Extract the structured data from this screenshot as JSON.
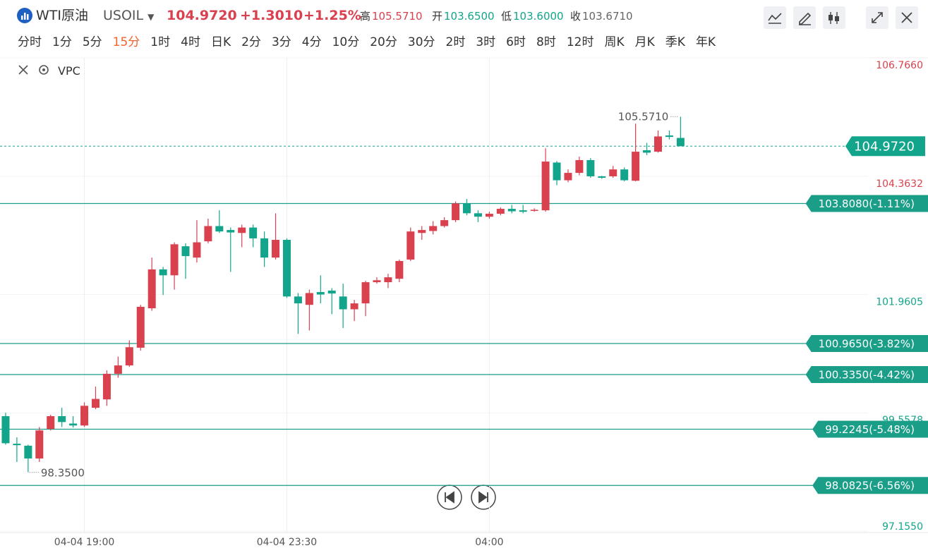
{
  "header": {
    "symbol_name": "WTI原油",
    "symbol": "USOIL",
    "price": "104.9720",
    "change": "+1.3010",
    "change_pct": "+1.25%",
    "stats": [
      {
        "label": "高",
        "value": "105.5710",
        "color": "#d9414f"
      },
      {
        "label": "开",
        "value": "103.6500",
        "color": "#13a58c"
      },
      {
        "label": "低",
        "value": "103.6000",
        "color": "#13a58c"
      },
      {
        "label": "收",
        "value": "103.6710",
        "color": "#666666"
      }
    ]
  },
  "timeframes": [
    {
      "label": "分时"
    },
    {
      "label": "1分"
    },
    {
      "label": "5分"
    },
    {
      "label": "15分",
      "active": true
    },
    {
      "label": "1时"
    },
    {
      "label": "4时"
    },
    {
      "label": "日K"
    },
    {
      "label": "2分"
    },
    {
      "label": "3分"
    },
    {
      "label": "4分"
    },
    {
      "label": "10分"
    },
    {
      "label": "20分"
    },
    {
      "label": "30分"
    },
    {
      "label": "2时"
    },
    {
      "label": "3时"
    },
    {
      "label": "6时"
    },
    {
      "label": "8时"
    },
    {
      "label": "12时"
    },
    {
      "label": "周K"
    },
    {
      "label": "月K"
    },
    {
      "label": "季K"
    },
    {
      "label": "年K"
    }
  ],
  "indicator": "VPC",
  "chart_data": {
    "type": "candlestick",
    "categories": [
      null,
      null,
      null,
      null,
      null,
      null,
      null,
      "04-04 19:00",
      null,
      null,
      null,
      null,
      null,
      null,
      null,
      null,
      null,
      null,
      null,
      null,
      null,
      null,
      null,
      null,
      null,
      "04-04 23:30",
      null,
      null,
      null,
      null,
      null,
      null,
      null,
      null,
      null,
      null,
      null,
      null,
      null,
      null,
      null,
      null,
      null,
      "04:00",
      null,
      null,
      null,
      null,
      null,
      null,
      null,
      null,
      null,
      null,
      null,
      null,
      null,
      null,
      null,
      null,
      null
    ],
    "open": [
      99.49,
      98.93,
      98.89,
      98.63,
      99.23,
      99.49,
      99.34,
      99.3,
      99.66,
      99.83,
      100.35,
      100.52,
      100.88,
      101.68,
      102.47,
      102.35,
      102.94,
      102.71,
      103.04,
      103.35,
      103.27,
      103.21,
      103.32,
      103.1,
      102.71,
      103.07,
      101.92,
      101.75,
      102.01,
      102.04,
      101.92,
      101.66,
      101.78,
      102.21,
      102.21,
      102.28,
      102.67,
      103.21,
      103.25,
      103.35,
      103.47,
      103.81,
      103.61,
      103.54,
      103.6,
      103.7,
      103.67,
      103.67,
      103.67,
      104.64,
      104.28,
      104.43,
      104.69,
      104.36,
      104.36,
      104.5,
      104.27,
      104.89,
      104.86,
      105.19,
      105.14
    ],
    "high": [
      99.56,
      99.06,
      98.91,
      99.27,
      99.52,
      99.66,
      99.49,
      99.77,
      100.09,
      100.42,
      100.7,
      101.03,
      101.75,
      102.71,
      102.52,
      103.02,
      103.0,
      103.47,
      103.5,
      103.67,
      103.32,
      103.38,
      103.38,
      103.24,
      103.61,
      103.1,
      101.99,
      102.06,
      102.35,
      102.09,
      102.18,
      101.85,
      102.24,
      102.31,
      102.38,
      102.67,
      103.32,
      103.35,
      103.45,
      103.53,
      103.85,
      103.9,
      103.67,
      103.64,
      103.73,
      103.78,
      103.78,
      103.71,
      104.93,
      104.67,
      104.5,
      104.76,
      104.73,
      104.37,
      104.57,
      104.54,
      105.43,
      105.04,
      105.29,
      105.29,
      105.571
    ],
    "low": [
      98.91,
      98.56,
      98.35,
      98.56,
      99.2,
      99.27,
      99.26,
      99.27,
      99.63,
      99.7,
      100.27,
      100.49,
      100.82,
      101.63,
      101.95,
      102.06,
      102.28,
      102.61,
      103.0,
      103.21,
      102.42,
      102.92,
      102.92,
      102.52,
      102.67,
      101.89,
      101.16,
      101.23,
      101.78,
      101.56,
      101.28,
      101.42,
      101.52,
      102.18,
      102.09,
      102.21,
      102.64,
      103.07,
      103.18,
      103.32,
      103.43,
      103.57,
      103.43,
      103.5,
      103.57,
      103.61,
      103.61,
      103.64,
      103.64,
      104.18,
      104.24,
      104.38,
      104.33,
      104.31,
      104.33,
      104.26,
      104.26,
      104.79,
      104.84,
      105.11,
      104.972
    ],
    "close": [
      98.94,
      98.9,
      98.63,
      99.2,
      99.49,
      99.37,
      99.3,
      99.7,
      99.84,
      100.35,
      100.52,
      100.89,
      101.71,
      102.47,
      102.35,
      102.98,
      102.74,
      103.02,
      103.35,
      103.24,
      103.22,
      103.32,
      103.1,
      102.71,
      103.07,
      101.92,
      101.78,
      101.99,
      101.96,
      101.98,
      101.66,
      101.78,
      102.21,
      102.25,
      102.31,
      102.64,
      103.24,
      103.27,
      103.35,
      103.47,
      103.81,
      103.61,
      103.54,
      103.6,
      103.7,
      103.65,
      103.64,
      103.68,
      104.66,
      104.28,
      104.43,
      104.69,
      104.36,
      104.33,
      104.5,
      104.28,
      104.86,
      104.84,
      105.17,
      105.16,
      104.972
    ],
    "up_color": "#d9414f",
    "down_color": "#13a58c",
    "ylim": [
      97.155,
      106.766
    ],
    "yticks": [
      {
        "value": 97.155,
        "label": "97.1550"
      },
      99.5578,
      101.9605,
      104.3632,
      {
        "value": 106.766,
        "label": "106.7660"
      }
    ],
    "ytick_colors": [
      "#13a58c",
      "#13a58c",
      "#13a58c",
      "#d9414f",
      "#d9414f"
    ],
    "grid": true,
    "levels": [
      {
        "value": 103.808,
        "label": "103.8080(-1.11%)"
      },
      {
        "value": 100.965,
        "label": "100.9650(-3.82%)"
      },
      {
        "value": 100.335,
        "label": "100.3350(-4.42%)"
      },
      {
        "value": 99.2245,
        "label": "99.2245(-5.48%)"
      },
      {
        "value": 98.0825,
        "label": "98.0825(-6.56%)"
      }
    ],
    "level_color": "#1a9e88",
    "last_price": {
      "value": 104.972,
      "label": "104.9720"
    },
    "high_mark": {
      "value": 105.571,
      "label": "105.5710"
    },
    "low_mark": {
      "value": 98.35,
      "label": "98.3500"
    }
  }
}
